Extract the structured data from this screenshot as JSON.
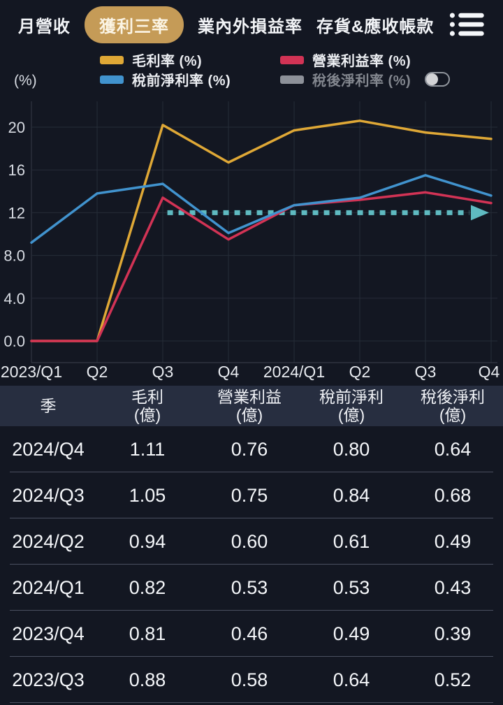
{
  "nav": {
    "items": [
      {
        "label": "月營收",
        "active": false
      },
      {
        "label": "獲利三率",
        "active": true
      },
      {
        "label": "業內外損益率",
        "active": false
      },
      {
        "label": "存貨&應收帳款",
        "active": false
      }
    ],
    "menu_icon": "list-icon"
  },
  "legend": {
    "items": [
      {
        "label": "毛利率 (%)",
        "color": "#dfa836",
        "disabled": false,
        "toggle": false
      },
      {
        "label": "營業利益率 (%)",
        "color": "#d23355",
        "disabled": false,
        "toggle": false
      },
      {
        "label": "稅前淨利率 (%)",
        "color": "#4193ce",
        "disabled": false,
        "toggle": false
      },
      {
        "label": "稅後淨利率 (%)",
        "color": "#8d9199",
        "disabled": true,
        "toggle": true
      }
    ]
  },
  "chart_data": {
    "type": "line",
    "y_unit_label": "(%)",
    "categories": [
      "2023/Q1",
      "Q2",
      "Q3",
      "Q4",
      "2024/Q1",
      "Q2",
      "Q3",
      "Q4"
    ],
    "y_ticks": [
      {
        "label": "20",
        "value": 20
      },
      {
        "label": "16",
        "value": 16
      },
      {
        "label": "12",
        "value": 12
      },
      {
        "label": "8.0",
        "value": 8
      },
      {
        "label": "4.0",
        "value": 4
      },
      {
        "label": "0.0",
        "value": 0
      }
    ],
    "ylim": [
      -2,
      22.4
    ],
    "grid": true,
    "legend_position": "top",
    "series": [
      {
        "name": "毛利率 (%)",
        "color": "#dfa836",
        "hidden": false,
        "values": [
          0.0,
          0.0,
          20.2,
          16.7,
          19.7,
          20.6,
          19.5,
          18.9
        ]
      },
      {
        "name": "營業利益率 (%)",
        "color": "#d23355",
        "hidden": false,
        "values": [
          0.0,
          0.0,
          13.4,
          9.5,
          12.7,
          13.2,
          13.9,
          12.9
        ]
      },
      {
        "name": "稅前淨利率 (%)",
        "color": "#4193ce",
        "hidden": false,
        "values": [
          9.2,
          13.8,
          14.7,
          10.1,
          12.7,
          13.4,
          15.5,
          13.6
        ]
      },
      {
        "name": "稅後淨利率 (%)",
        "color": "#8d9199",
        "hidden": true
      }
    ],
    "annotation": {
      "type": "dotted-arrow",
      "color": "#5fbac1",
      "y": 12,
      "from_x_index": 2.07,
      "to_x_index": 6.67,
      "arrow_len": 28
    }
  },
  "table": {
    "columns": [
      {
        "title": "季",
        "unit": ""
      },
      {
        "title": "毛利",
        "unit": "(億)"
      },
      {
        "title": "營業利益",
        "unit": "(億)"
      },
      {
        "title": "稅前淨利",
        "unit": "(億)"
      },
      {
        "title": "稅後淨利",
        "unit": "(億)"
      }
    ],
    "rows": [
      {
        "quarter": "2024/Q4",
        "values": [
          "1.11",
          "0.76",
          "0.80",
          "0.64"
        ]
      },
      {
        "quarter": "2024/Q3",
        "values": [
          "1.05",
          "0.75",
          "0.84",
          "0.68"
        ]
      },
      {
        "quarter": "2024/Q2",
        "values": [
          "0.94",
          "0.60",
          "0.61",
          "0.49"
        ]
      },
      {
        "quarter": "2024/Q1",
        "values": [
          "0.82",
          "0.53",
          "0.53",
          "0.43"
        ]
      },
      {
        "quarter": "2023/Q4",
        "values": [
          "0.81",
          "0.46",
          "0.49",
          "0.39"
        ]
      },
      {
        "quarter": "2023/Q3",
        "values": [
          "0.88",
          "0.58",
          "0.64",
          "0.52"
        ]
      }
    ]
  }
}
